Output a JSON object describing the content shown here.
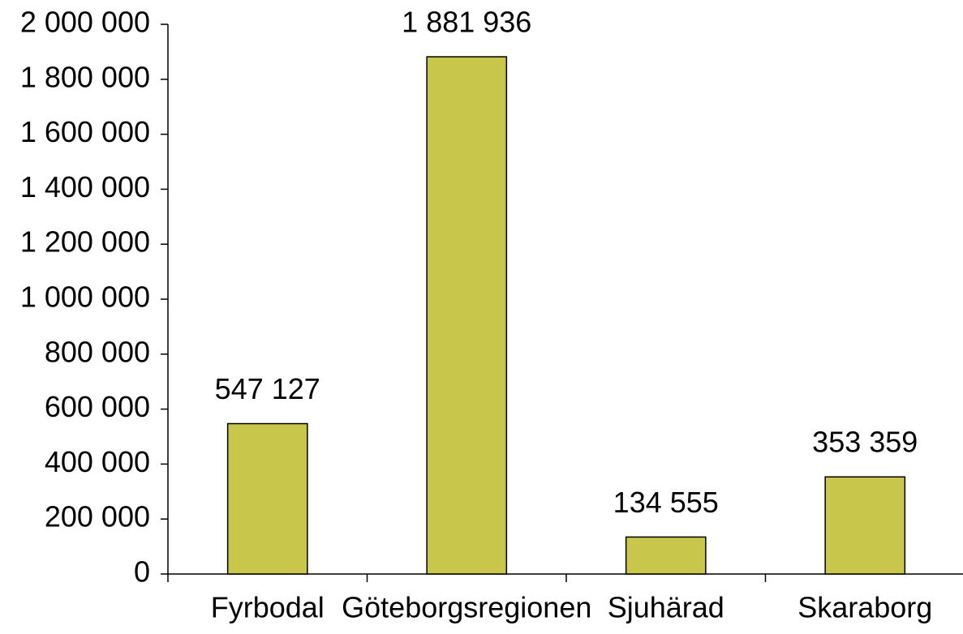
{
  "chart_data": {
    "type": "bar",
    "categories": [
      "Fyrbodal",
      "Göteborgsregionen",
      "Sjuhärad",
      "Skaraborg"
    ],
    "values": [
      547127,
      1881936,
      134555,
      353359
    ],
    "value_labels": [
      "547 127",
      "1 881 936",
      "134 555",
      "353 359"
    ],
    "color": "#c8c64b",
    "ylim": [
      0,
      2000000
    ],
    "yticks": [
      0,
      {
        "value": 200000,
        "label": "200 000"
      },
      {
        "value": 400000,
        "label": "400 000"
      },
      {
        "value": 600000,
        "label": "600 000"
      },
      {
        "value": 800000,
        "label": "800 000"
      },
      {
        "value": 1000000,
        "label": "1 000 000"
      },
      {
        "value": 1200000,
        "label": "1 200 000"
      },
      {
        "value": 1400000,
        "label": "1 400 000"
      },
      {
        "value": 1600000,
        "label": "1 600 000"
      },
      {
        "value": 1800000,
        "label": "1 800 000"
      },
      {
        "value": 2000000,
        "label": "2 000 000"
      }
    ],
    "grid": false
  }
}
